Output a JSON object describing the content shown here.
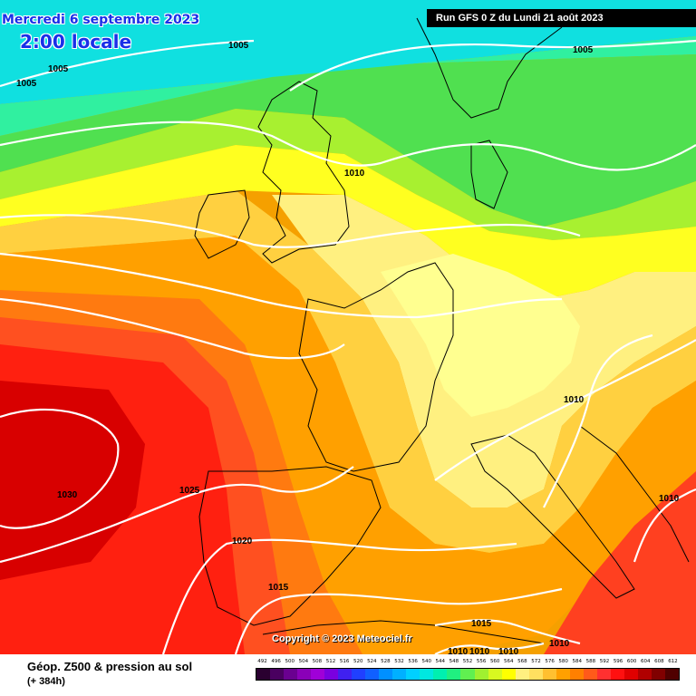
{
  "header": {
    "date": "Mercredi 6 septembre 2023",
    "time": "2:00 locale",
    "run": "Run GFS 0 Z du Lundi 21 août 2023"
  },
  "copyright": "Copyright © 2023 Meteociel.fr",
  "footer": {
    "title": "Géop. Z500 & pression au sol",
    "subtitle": "(+ 384h)"
  },
  "isobar_labels": [
    "1005",
    "1005",
    "1005",
    "1005",
    "1010",
    "1010",
    "1030",
    "1025",
    "1020",
    "1015",
    "1010",
    "1015",
    "1010",
    "1010",
    "1010",
    "1010"
  ],
  "scale": {
    "labels": [
      "492",
      "496",
      "500",
      "504",
      "508",
      "512",
      "516",
      "520",
      "524",
      "528",
      "532",
      "536",
      "540",
      "544",
      "548",
      "552",
      "556",
      "560",
      "564",
      "568",
      "572",
      "576",
      "580",
      "584",
      "588",
      "592",
      "596",
      "600",
      "604",
      "608",
      "612"
    ],
    "colors": [
      "#2a0030",
      "#4a0060",
      "#6a0090",
      "#8a00b8",
      "#a000d8",
      "#7a00e0",
      "#4020f0",
      "#2040ff",
      "#1060ff",
      "#0090ff",
      "#00b0ff",
      "#00d0ff",
      "#00e8e0",
      "#00f0b0",
      "#20f080",
      "#60f050",
      "#a0f030",
      "#d8f820",
      "#ffff00",
      "#fff080",
      "#ffe060",
      "#ffc030",
      "#ffa000",
      "#ff8000",
      "#ff5a1a",
      "#ff3030",
      "#ff1010",
      "#e00000",
      "#b00000",
      "#800000",
      "#500000"
    ]
  },
  "colors": {
    "title_blue": "#1a2fe8",
    "isobar": "#ffffff"
  }
}
